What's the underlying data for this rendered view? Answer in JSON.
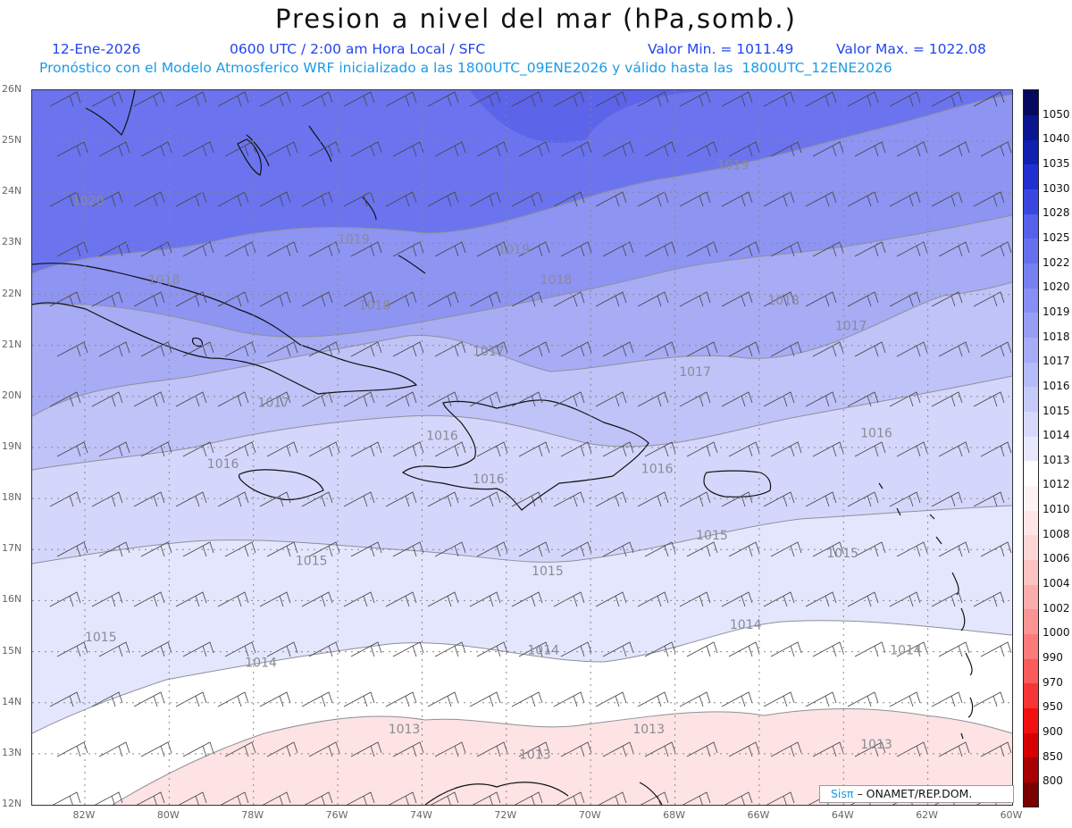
{
  "header": {
    "title": "Presion a nivel del mar (hPa,somb.)",
    "date": "12-Ene-2026",
    "time": "0600 UTC / 2:00 am Hora Local / SFC",
    "min_value": "Valor Min. = 1011.49",
    "max_value": "Valor Max. = 1022.08",
    "forecast_info": "Pronóstico con el Modelo Atmosferico WRF inicializado a las 1800UTC_09ENE2026 y válido hasta las  1800UTC_12ENE2026"
  },
  "axes": {
    "y_labels": [
      "26N",
      "25N",
      "24N",
      "23N",
      "22N",
      "21N",
      "20N",
      "19N",
      "18N",
      "17N",
      "16N",
      "15N",
      "14N",
      "13N",
      "12N"
    ],
    "x_labels": [
      "82W",
      "80W",
      "78W",
      "76W",
      "74W",
      "72W",
      "70W",
      "68W",
      "66W",
      "64W",
      "62W",
      "60W"
    ],
    "lat_range": [
      12,
      26
    ],
    "lon_range": [
      -83.25,
      -60
    ]
  },
  "contour_labels": [
    {
      "text": "1020",
      "lon": -82.3,
      "lat": 23.75
    },
    {
      "text": "1019",
      "lon": -76.0,
      "lat": 23.0
    },
    {
      "text": "1019",
      "lon": -72.2,
      "lat": 22.8
    },
    {
      "text": "1019",
      "lon": -67.0,
      "lat": 24.45
    },
    {
      "text": "1018",
      "lon": -80.5,
      "lat": 22.2
    },
    {
      "text": "1018",
      "lon": -75.5,
      "lat": 21.7
    },
    {
      "text": "1018",
      "lon": -71.2,
      "lat": 22.2
    },
    {
      "text": "1018",
      "lon": -65.8,
      "lat": 21.8
    },
    {
      "text": "1017",
      "lon": -72.8,
      "lat": 20.8
    },
    {
      "text": "1017",
      "lon": -67.9,
      "lat": 20.4
    },
    {
      "text": "1017",
      "lon": -64.2,
      "lat": 21.3
    },
    {
      "text": "1017",
      "lon": -77.9,
      "lat": 19.8
    },
    {
      "text": "1016",
      "lon": -73.9,
      "lat": 19.15
    },
    {
      "text": "1016",
      "lon": -79.1,
      "lat": 18.6
    },
    {
      "text": "1016",
      "lon": -72.8,
      "lat": 18.3
    },
    {
      "text": "1016",
      "lon": -68.8,
      "lat": 18.5
    },
    {
      "text": "1016",
      "lon": -63.6,
      "lat": 19.2
    },
    {
      "text": "1015",
      "lon": -67.5,
      "lat": 17.2
    },
    {
      "text": "1015",
      "lon": -64.4,
      "lat": 16.85
    },
    {
      "text": "1015",
      "lon": -77.0,
      "lat": 16.7
    },
    {
      "text": "1015",
      "lon": -71.4,
      "lat": 16.5
    },
    {
      "text": "1015",
      "lon": -82.0,
      "lat": 15.2
    },
    {
      "text": "1014",
      "lon": -78.2,
      "lat": 14.7
    },
    {
      "text": "1014",
      "lon": -71.5,
      "lat": 14.95
    },
    {
      "text": "1014",
      "lon": -66.7,
      "lat": 15.45
    },
    {
      "text": "1014",
      "lon": -62.9,
      "lat": 14.95
    },
    {
      "text": "1013",
      "lon": -74.8,
      "lat": 13.4
    },
    {
      "text": "1013",
      "lon": -71.7,
      "lat": 12.9
    },
    {
      "text": "1013",
      "lon": -69.0,
      "lat": 13.4
    },
    {
      "text": "1013",
      "lon": -63.6,
      "lat": 13.1
    }
  ],
  "colorbar": {
    "levels": [
      "800",
      "850",
      "900",
      "950",
      "970",
      "990",
      "1000",
      "1002",
      "1004",
      "1006",
      "1008",
      "1010",
      "1012",
      "1013",
      "1014",
      "1015",
      "1016",
      "1017",
      "1018",
      "1019",
      "1020",
      "1022",
      "1025",
      "1028",
      "1030",
      "1035",
      "1040",
      "1050"
    ],
    "colors": [
      "#7a0000",
      "#a80000",
      "#d60000",
      "#f01010",
      "#f63535",
      "#f95a5a",
      "#fb7a7a",
      "#fc9494",
      "#fdacac",
      "#fdc2c2",
      "#fed6d6",
      "#fee6e6",
      "#fff2f2",
      "#ffffff",
      "#e6e8fd",
      "#d6d9fc",
      "#c6cafb",
      "#b6bbf9",
      "#a6acf7",
      "#979ef5",
      "#878ff3",
      "#7780f1",
      "#6670ee",
      "#5561eb",
      "#3a46e0",
      "#2030d0",
      "#1020b0",
      "#0a1590",
      "#050a60"
    ]
  },
  "branding": {
    "sis": "Sisπ",
    "text": "– ONAMET/REP.DOM."
  }
}
